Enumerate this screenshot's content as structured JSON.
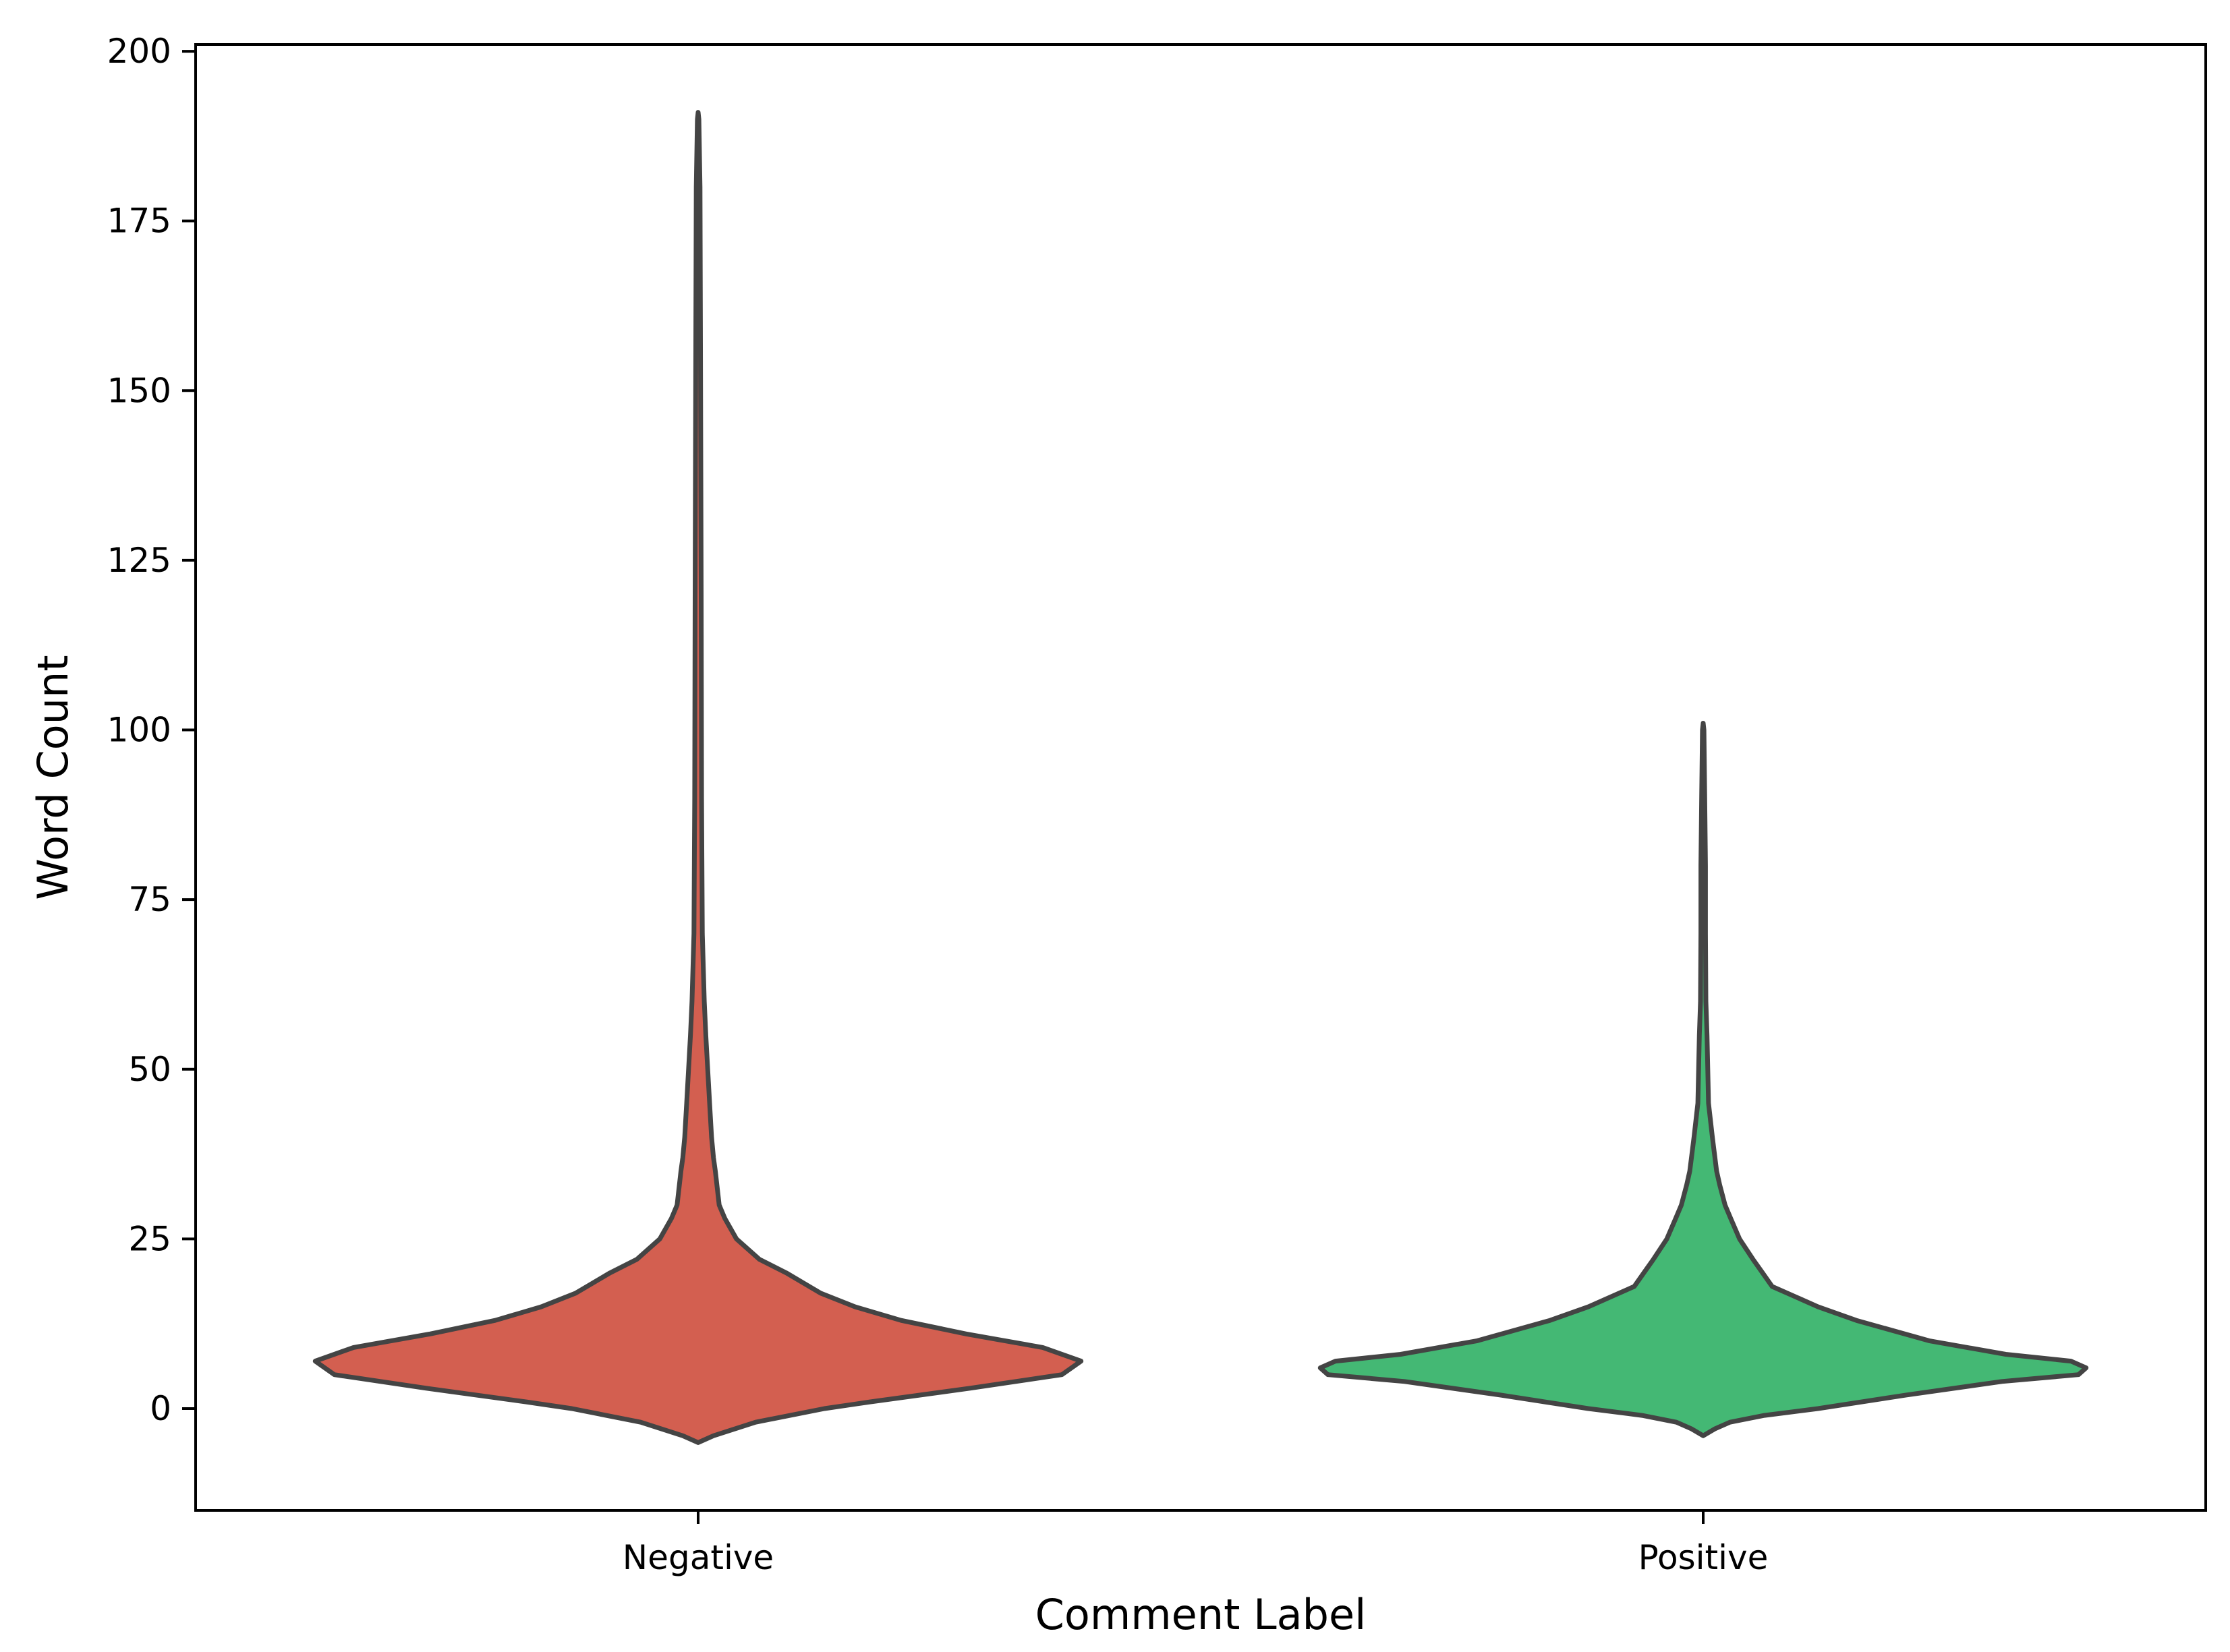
{
  "chart_data": {
    "type": "violin",
    "title": "",
    "xlabel": "Comment Label",
    "ylabel": "Word Count",
    "ylim": [
      -15,
      201
    ],
    "yticks": [
      0,
      25,
      50,
      75,
      100,
      125,
      150,
      175,
      200
    ],
    "grid": false,
    "legend": "none",
    "categories": [
      "Negative",
      "Positive"
    ],
    "series": [
      {
        "color": "#d35f50",
        "density": [
          [
            -5,
            0.0
          ],
          [
            -4,
            0.04
          ],
          [
            -2,
            0.15
          ],
          [
            0,
            0.33
          ],
          [
            1,
            0.45
          ],
          [
            3,
            0.71
          ],
          [
            5,
            0.95
          ],
          [
            7,
            1.0
          ],
          [
            9,
            0.9
          ],
          [
            11,
            0.7
          ],
          [
            13,
            0.53
          ],
          [
            15,
            0.41
          ],
          [
            17,
            0.32
          ],
          [
            20,
            0.23
          ],
          [
            22,
            0.16
          ],
          [
            25,
            0.1
          ],
          [
            28,
            0.07
          ],
          [
            30,
            0.055
          ],
          [
            35,
            0.045
          ],
          [
            37,
            0.04
          ],
          [
            40,
            0.035
          ],
          [
            45,
            0.03
          ],
          [
            50,
            0.025
          ],
          [
            55,
            0.02
          ],
          [
            60,
            0.016
          ],
          [
            70,
            0.011
          ],
          [
            90,
            0.009
          ],
          [
            120,
            0.008
          ],
          [
            160,
            0.006
          ],
          [
            180,
            0.005
          ],
          [
            190,
            0.002
          ],
          [
            191,
            0.0
          ]
        ]
      },
      {
        "color": "#44b874",
        "density": [
          [
            -4,
            0.0
          ],
          [
            -3,
            0.03
          ],
          [
            -2,
            0.07
          ],
          [
            -1,
            0.16
          ],
          [
            0,
            0.3
          ],
          [
            2,
            0.53
          ],
          [
            4,
            0.78
          ],
          [
            5,
            0.98
          ],
          [
            6,
            1.0
          ],
          [
            7,
            0.96
          ],
          [
            8,
            0.79
          ],
          [
            10,
            0.59
          ],
          [
            13,
            0.4
          ],
          [
            15,
            0.3
          ],
          [
            17,
            0.22
          ],
          [
            18,
            0.18
          ],
          [
            20,
            0.155
          ],
          [
            22,
            0.13
          ],
          [
            25,
            0.095
          ],
          [
            28,
            0.072
          ],
          [
            30,
            0.057
          ],
          [
            33,
            0.043
          ],
          [
            35,
            0.035
          ],
          [
            40,
            0.024
          ],
          [
            45,
            0.014
          ],
          [
            50,
            0.012
          ],
          [
            55,
            0.01
          ],
          [
            60,
            0.007
          ],
          [
            70,
            0.006
          ],
          [
            80,
            0.006
          ],
          [
            90,
            0.004
          ],
          [
            100,
            0.002
          ],
          [
            101,
            0.0
          ]
        ]
      }
    ]
  }
}
